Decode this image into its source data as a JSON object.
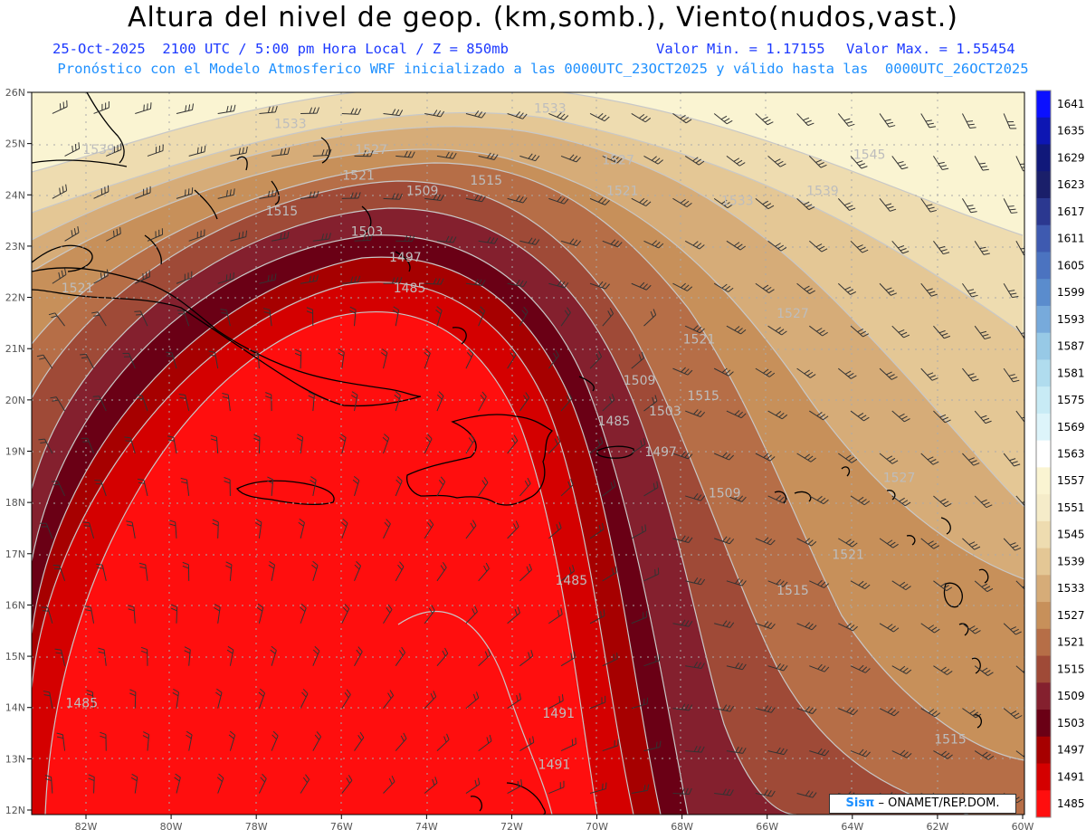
{
  "header": {
    "title": "Altura del nivel de geop. (km,somb.), Viento(nudos,vast.)",
    "date_line": "25-Oct-2025  2100 UTC / 5:00 pm Hora Local / Z = 850mb",
    "min_line": "Valor Min. = 1.17155",
    "max_line": "Valor Max. = 1.55454",
    "model_line": "Pronóstico con el Modelo Atmosferico WRF inicializado a las 0000UTC_23OCT2025 y válido hasta las  0000UTC_26OCT2025"
  },
  "map": {
    "lat_labels": [
      "26N",
      "25N",
      "24N",
      "23N",
      "22N",
      "21N",
      "20N",
      "19N",
      "18N",
      "17N",
      "16N",
      "15N",
      "14N",
      "13N",
      "12N"
    ],
    "lon_labels": [
      "82W",
      "80W",
      "78W",
      "76W",
      "74W",
      "72W",
      "70W",
      "68W",
      "66W",
      "64W",
      "62W",
      "60W"
    ],
    "contour_labels": [
      {
        "text": "1539",
        "lon": -81.7,
        "lat": 24.8
      },
      {
        "text": "1533",
        "lon": -77.2,
        "lat": 25.3
      },
      {
        "text": "1527",
        "lon": -75.3,
        "lat": 24.8
      },
      {
        "text": "1521",
        "lon": -75.6,
        "lat": 24.3
      },
      {
        "text": "1515",
        "lon": -77.4,
        "lat": 23.6
      },
      {
        "text": "1509",
        "lon": -74.1,
        "lat": 24.0
      },
      {
        "text": "1515",
        "lon": -72.6,
        "lat": 24.2
      },
      {
        "text": "1533",
        "lon": -71.1,
        "lat": 25.6
      },
      {
        "text": "1527",
        "lon": -69.5,
        "lat": 24.6
      },
      {
        "text": "1521",
        "lon": -69.4,
        "lat": 24.0
      },
      {
        "text": "1533",
        "lon": -66.7,
        "lat": 23.8
      },
      {
        "text": "1539",
        "lon": -64.7,
        "lat": 24.0
      },
      {
        "text": "1545",
        "lon": -63.6,
        "lat": 24.7
      },
      {
        "text": "1503",
        "lon": -75.4,
        "lat": 23.2
      },
      {
        "text": "1497",
        "lon": -74.5,
        "lat": 22.7
      },
      {
        "text": "1485",
        "lon": -74.4,
        "lat": 22.1
      },
      {
        "text": "1521",
        "lon": -82.2,
        "lat": 22.1
      },
      {
        "text": "1527",
        "lon": -65.4,
        "lat": 21.6
      },
      {
        "text": "1521",
        "lon": -67.6,
        "lat": 21.1
      },
      {
        "text": "1509",
        "lon": -69.0,
        "lat": 20.3
      },
      {
        "text": "1515",
        "lon": -67.5,
        "lat": 20.0
      },
      {
        "text": "1503",
        "lon": -68.4,
        "lat": 19.7
      },
      {
        "text": "1485",
        "lon": -69.6,
        "lat": 19.5
      },
      {
        "text": "1497",
        "lon": -68.5,
        "lat": 18.9
      },
      {
        "text": "1509",
        "lon": -67.0,
        "lat": 18.1
      },
      {
        "text": "1527",
        "lon": -62.9,
        "lat": 18.4
      },
      {
        "text": "1521",
        "lon": -64.1,
        "lat": 16.9
      },
      {
        "text": "1515",
        "lon": -65.4,
        "lat": 16.2
      },
      {
        "text": "1485",
        "lon": -70.6,
        "lat": 16.4
      },
      {
        "text": "1485",
        "lon": -82.1,
        "lat": 14.0
      },
      {
        "text": "1491",
        "lon": -70.9,
        "lat": 13.8
      },
      {
        "text": "1491",
        "lon": -71.0,
        "lat": 12.8
      },
      {
        "text": "1515",
        "lon": -61.7,
        "lat": 13.3
      }
    ],
    "credit_logo": "Sisπ",
    "credit_text": " – ONAMET/REP.DOM."
  },
  "legend": {
    "levels": [
      "1641",
      "1635",
      "1629",
      "1623",
      "1617",
      "1611",
      "1605",
      "1599",
      "1593",
      "1587",
      "1581",
      "1575",
      "1569",
      "1563",
      "1557",
      "1551",
      "1545",
      "1539",
      "1533",
      "1527",
      "1521",
      "1515",
      "1509",
      "1503",
      "1497",
      "1491",
      "1485"
    ],
    "colors": [
      "#0b10ff",
      "#0d16b3",
      "#10187a",
      "#1a1f6a",
      "#2b3890",
      "#3e5ab0",
      "#4b73c0",
      "#5a8ccd",
      "#77aadb",
      "#97c9e6",
      "#b0dcee",
      "#c8ebf5",
      "#ddf4fa",
      "#ffffff",
      "#faf4d2",
      "#f5ecc9",
      "#eedcb0",
      "#e4c795",
      "#d6ac78",
      "#c7905a",
      "#b66e47",
      "#9f4a37",
      "#84202e",
      "#6a0015",
      "#a60000",
      "#d40000",
      "#ff0e0e"
    ]
  }
}
